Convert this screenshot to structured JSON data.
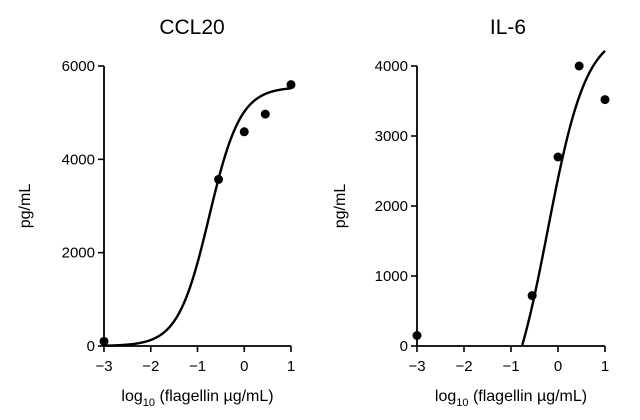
{
  "chart_data": [
    {
      "type": "scatter",
      "title": "CCL20",
      "xlabel": {
        "prefix": "log",
        "sub": "10",
        "rest": " (flagellin µg/mL)"
      },
      "ylabel": "pg/mL",
      "xlim": [
        -3,
        1
      ],
      "ylim": [
        0,
        6000
      ],
      "x_ticks": [
        -3,
        -2,
        -1,
        0,
        1
      ],
      "y_ticks": [
        0,
        2000,
        4000,
        6000
      ],
      "points": [
        {
          "x": -3.0,
          "y": 100
        },
        {
          "x": -0.55,
          "y": 3570
        },
        {
          "x": 0.0,
          "y": 4590
        },
        {
          "x": 0.45,
          "y": 4970
        },
        {
          "x": 1.0,
          "y": 5600
        }
      ],
      "fit_curve": {
        "type": "sigmoid",
        "bottom": 0,
        "top": 5550,
        "logEC50": -0.75,
        "hill": 1.3
      }
    },
    {
      "type": "scatter",
      "title": "IL-6",
      "xlabel": {
        "prefix": "log",
        "sub": "10",
        "rest": " (flagellin µg/mL)"
      },
      "ylabel": "pg/mL",
      "xlim": [
        -3,
        1
      ],
      "ylim": [
        0,
        4000
      ],
      "x_ticks": [
        -3,
        -2,
        -1,
        0,
        1
      ],
      "y_ticks": [
        0,
        1000,
        2000,
        3000,
        4000
      ],
      "points": [
        {
          "x": -3.0,
          "y": 150
        },
        {
          "x": -0.55,
          "y": 720
        },
        {
          "x": 0.0,
          "y": 2700
        },
        {
          "x": 0.45,
          "y": 4000
        },
        {
          "x": 1.0,
          "y": 3520
        }
      ],
      "fit_curve": {
        "type": "sigmoid",
        "bottom": -1200,
        "top": 4500,
        "logEC50": -0.22,
        "hill": 1.05
      }
    }
  ]
}
